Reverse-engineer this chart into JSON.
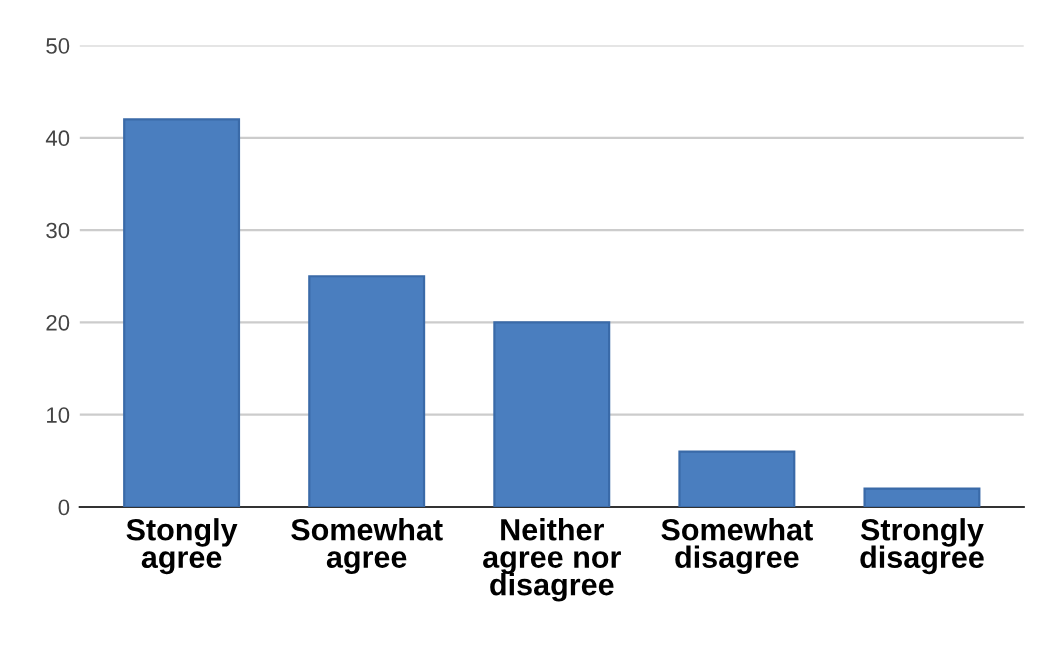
{
  "chart_data": {
    "type": "bar",
    "categories": [
      "Stongly\nagree",
      "Somewhat\nagree",
      "Neither\nagree nor\ndisagree",
      "Somewhat\ndisagree",
      "Strongly\ndisagree"
    ],
    "values": [
      42,
      25,
      20,
      6,
      2
    ],
    "color": "#4a7ebf",
    "ylim": [
      0,
      50
    ],
    "yticks": [
      0,
      10,
      20,
      30,
      40,
      50
    ],
    "grid": "y",
    "legend": false
  }
}
